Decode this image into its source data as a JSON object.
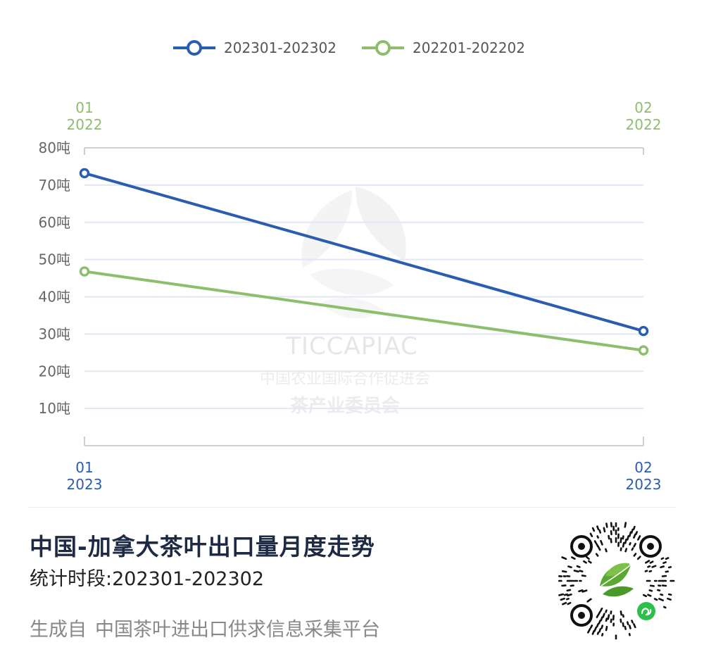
{
  "chart_data": {
    "type": "line",
    "title": "中国-加拿大茶叶出口量月度走势",
    "y_unit": "吨",
    "ylim": [
      0,
      80
    ],
    "y_ticks": [
      "10吨",
      "20吨",
      "30吨",
      "40吨",
      "50吨",
      "60吨",
      "70吨",
      "80吨"
    ],
    "grid": true,
    "legend_position": "top-center",
    "series": [
      {
        "name": "202301-202302",
        "color": "#2a5db0",
        "x_months": [
          "01",
          "02"
        ],
        "x_year": "2023",
        "values": [
          73.2,
          30.8
        ]
      },
      {
        "name": "202201-202202",
        "color": "#8cbe6e",
        "x_months": [
          "01",
          "02"
        ],
        "x_year": "2022",
        "values": [
          46.8,
          25.6
        ]
      }
    ]
  },
  "watermark": {
    "name": "TICCAPIAC",
    "line1": "中国农业国际合作促进会",
    "line2": "茶产业委员会"
  },
  "footer": {
    "title": "中国-加拿大茶叶出口量月度走势",
    "range_label": "统计时段:",
    "range_value": "202301-202302",
    "source_prefix": "生成自",
    "source_name": "中国茶叶进出口供求信息采集平台"
  },
  "icons": {
    "qr": "mini-program-qr-code-icon",
    "leaf": "tea-leaf-logo-icon"
  }
}
